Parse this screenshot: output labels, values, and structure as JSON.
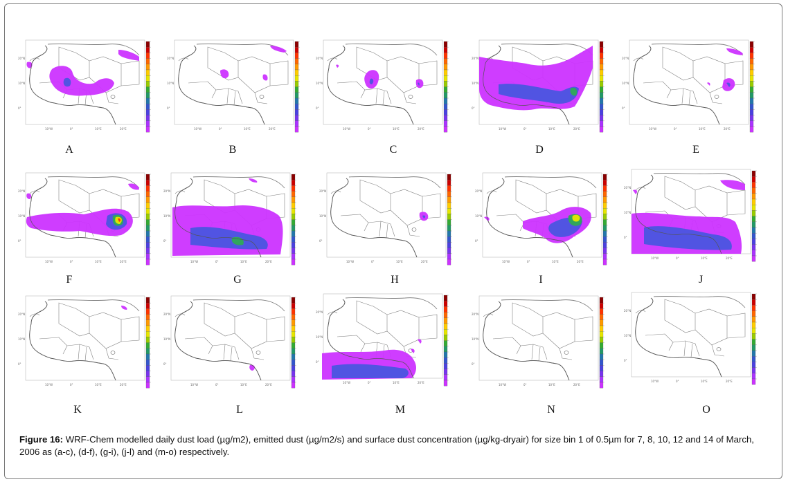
{
  "figure": {
    "caption_label": "Figure 16:",
    "caption_text": " WRF-Chem modelled daily dust load (µg/m2), emitted dust (µg/m2/s) and surface dust concentration (µg/kg-dryair) for size bin 1 of 0.5µm for 7, 8, 10, 12 and 14 of March, 2006  as (a-c), (d-f), (g-i), (j-l) and (m-o) respectively."
  },
  "colors": {
    "dust_low": "#cc33ff",
    "dust_mid": "#4a55e0",
    "dust_green": "#2faa55",
    "dust_yellow": "#e6e600",
    "dust_high": "#ff3300",
    "map_lines": "#808080"
  },
  "map_ticks": {
    "lat": [
      "20°N",
      "10°N",
      "0°"
    ],
    "lon": [
      "10°W",
      "0°",
      "10°E",
      "20°E"
    ]
  },
  "panels": [
    {
      "label": "A"
    },
    {
      "label": "B"
    },
    {
      "label": "C"
    },
    {
      "label": "D"
    },
    {
      "label": "E"
    },
    {
      "label": "F"
    },
    {
      "label": "G"
    },
    {
      "label": "H"
    },
    {
      "label": "I"
    },
    {
      "label": "J"
    },
    {
      "label": "K"
    },
    {
      "label": "L"
    },
    {
      "label": "M"
    },
    {
      "label": "N"
    },
    {
      "label": "O"
    }
  ]
}
